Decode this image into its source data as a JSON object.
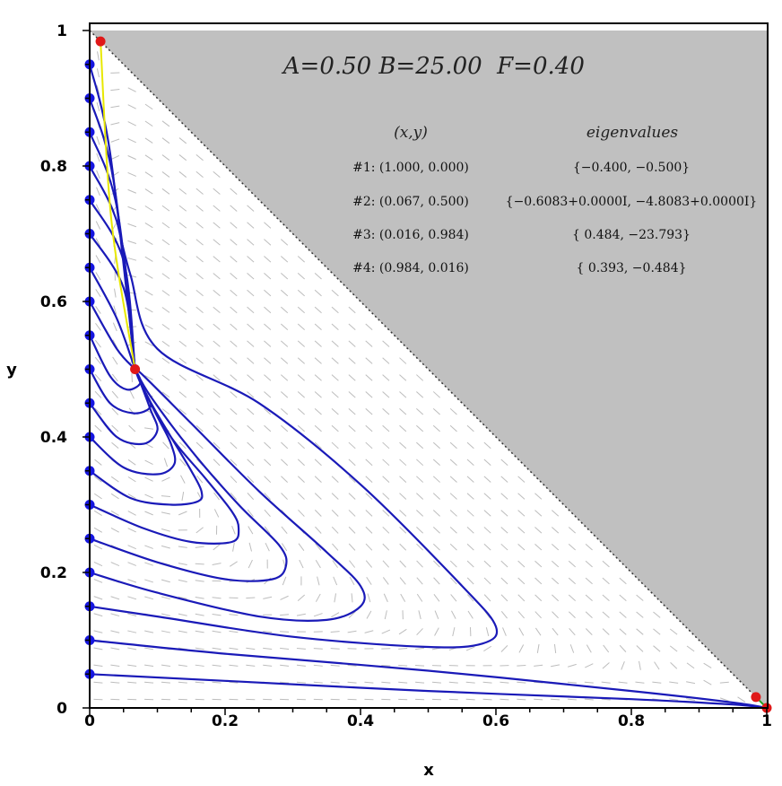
{
  "params": {
    "A": "A=0.50",
    "B": "B=25.00",
    "F": "F=0.40"
  },
  "fixed_points_table": {
    "headers": {
      "xy": "(x,y)",
      "eig": "eigenvalues"
    },
    "rows": [
      {
        "point": "#1: (1.000, 0.000)",
        "eig": "{−0.400, −0.500}"
      },
      {
        "point": "#2: (0.067, 0.500)",
        "eig": "{−0.6083+0.0000I, −4.8083+0.0000I}"
      },
      {
        "point": "#3: (0.016, 0.984)",
        "eig": "{ 0.484, −23.793}"
      },
      {
        "point": "#4: (0.984, 0.016)",
        "eig": "{ 0.393, −0.484}"
      }
    ]
  },
  "chart_data": {
    "type": "line",
    "title": "",
    "xlabel": "x",
    "ylabel": "y",
    "xlim": [
      0,
      1
    ],
    "ylim": [
      0,
      1
    ],
    "xticks": [
      0,
      0.2,
      0.4,
      0.6,
      0.8,
      1
    ],
    "xtick_labels": [
      "0",
      "0.2",
      "0.4",
      "0.6",
      "0.8",
      "1"
    ],
    "yticks": [
      0,
      0.2,
      0.4,
      0.6,
      0.8,
      1
    ],
    "ytick_labels": [
      "0",
      "0.2",
      "0.4",
      "0.6",
      "0.8",
      "1"
    ],
    "grid": false,
    "direction_field": true,
    "shaded_region": "x + y > 1",
    "colors": {
      "trajectory": "#1a1ab8",
      "start_point": "#1616e0",
      "fixed_point": "#e01818",
      "separatrix": "#e8e800",
      "shade": "#c0c0c0",
      "field": "#bdbdbd"
    },
    "start_points": [
      [
        0,
        0.05
      ],
      [
        0,
        0.1
      ],
      [
        0,
        0.15
      ],
      [
        0,
        0.2
      ],
      [
        0,
        0.25
      ],
      [
        0,
        0.3
      ],
      [
        0,
        0.35
      ],
      [
        0,
        0.4
      ],
      [
        0,
        0.45
      ],
      [
        0,
        0.5
      ],
      [
        0,
        0.55
      ],
      [
        0,
        0.6
      ],
      [
        0,
        0.65
      ],
      [
        0,
        0.7
      ],
      [
        0,
        0.75
      ],
      [
        0,
        0.8
      ],
      [
        0,
        0.85
      ],
      [
        0,
        0.9
      ],
      [
        0,
        0.95
      ]
    ],
    "fixed_points": [
      [
        1.0,
        0.0
      ],
      [
        0.067,
        0.5
      ],
      [
        0.016,
        0.984
      ],
      [
        0.984,
        0.016
      ]
    ],
    "trajectories": [
      [
        [
          0,
          0.05
        ],
        [
          0.2,
          0.04
        ],
        [
          0.5,
          0.025
        ],
        [
          0.8,
          0.013
        ],
        [
          0.95,
          0.005
        ],
        [
          1,
          0
        ]
      ],
      [
        [
          0,
          0.1
        ],
        [
          0.2,
          0.08
        ],
        [
          0.5,
          0.055
        ],
        [
          0.8,
          0.025
        ],
        [
          0.95,
          0.008
        ],
        [
          1,
          0
        ]
      ],
      [
        [
          0,
          0.15
        ],
        [
          0.1,
          0.135
        ],
        [
          0.3,
          0.105
        ],
        [
          0.5,
          0.09
        ],
        [
          0.58,
          0.095
        ],
        [
          0.6,
          0.12
        ],
        [
          0.55,
          0.18
        ],
        [
          0.4,
          0.33
        ],
        [
          0.25,
          0.45
        ],
        [
          0.1,
          0.53
        ],
        [
          0.06,
          0.64
        ],
        [
          0.04,
          0.72
        ]
      ],
      [
        [
          0,
          0.2
        ],
        [
          0.1,
          0.17
        ],
        [
          0.25,
          0.135
        ],
        [
          0.35,
          0.13
        ],
        [
          0.4,
          0.15
        ],
        [
          0.4,
          0.18
        ],
        [
          0.35,
          0.23
        ],
        [
          0.25,
          0.32
        ],
        [
          0.15,
          0.42
        ],
        [
          0.08,
          0.49
        ],
        [
          0.067,
          0.5
        ]
      ],
      [
        [
          0,
          0.25
        ],
        [
          0.1,
          0.215
        ],
        [
          0.2,
          0.19
        ],
        [
          0.27,
          0.19
        ],
        [
          0.29,
          0.21
        ],
        [
          0.28,
          0.24
        ],
        [
          0.22,
          0.3
        ],
        [
          0.15,
          0.38
        ],
        [
          0.09,
          0.46
        ],
        [
          0.067,
          0.5
        ]
      ],
      [
        [
          0,
          0.3
        ],
        [
          0.08,
          0.265
        ],
        [
          0.15,
          0.245
        ],
        [
          0.21,
          0.245
        ],
        [
          0.22,
          0.265
        ],
        [
          0.21,
          0.29
        ],
        [
          0.17,
          0.34
        ],
        [
          0.12,
          0.4
        ],
        [
          0.08,
          0.47
        ],
        [
          0.067,
          0.5
        ]
      ],
      [
        [
          0,
          0.35
        ],
        [
          0.06,
          0.31
        ],
        [
          0.12,
          0.3
        ],
        [
          0.16,
          0.305
        ],
        [
          0.165,
          0.32
        ],
        [
          0.15,
          0.35
        ],
        [
          0.12,
          0.4
        ],
        [
          0.085,
          0.46
        ],
        [
          0.067,
          0.5
        ]
      ],
      [
        [
          0,
          0.4
        ],
        [
          0.05,
          0.355
        ],
        [
          0.1,
          0.345
        ],
        [
          0.125,
          0.36
        ],
        [
          0.12,
          0.39
        ],
        [
          0.1,
          0.43
        ],
        [
          0.075,
          0.48
        ],
        [
          0.067,
          0.5
        ]
      ],
      [
        [
          0,
          0.45
        ],
        [
          0.04,
          0.4
        ],
        [
          0.08,
          0.39
        ],
        [
          0.1,
          0.41
        ],
        [
          0.09,
          0.44
        ],
        [
          0.075,
          0.48
        ],
        [
          0.067,
          0.5
        ]
      ],
      [
        [
          0,
          0.5
        ],
        [
          0.03,
          0.45
        ],
        [
          0.065,
          0.435
        ],
        [
          0.09,
          0.445
        ],
        [
          0.08,
          0.47
        ],
        [
          0.067,
          0.5
        ]
      ],
      [
        [
          0,
          0.55
        ],
        [
          0.03,
          0.49
        ],
        [
          0.055,
          0.47
        ],
        [
          0.075,
          0.48
        ],
        [
          0.067,
          0.5
        ]
      ],
      [
        [
          0,
          0.6
        ],
        [
          0.04,
          0.53
        ],
        [
          0.067,
          0.5
        ]
      ],
      [
        [
          0,
          0.65
        ],
        [
          0.04,
          0.575
        ],
        [
          0.067,
          0.5
        ]
      ],
      [
        [
          0,
          0.7
        ],
        [
          0.05,
          0.62
        ],
        [
          0.067,
          0.5
        ]
      ],
      [
        [
          0,
          0.75
        ],
        [
          0.05,
          0.66
        ],
        [
          0.067,
          0.5
        ]
      ],
      [
        [
          0,
          0.8
        ],
        [
          0.045,
          0.7
        ],
        [
          0.067,
          0.5
        ]
      ],
      [
        [
          0,
          0.85
        ],
        [
          0.04,
          0.74
        ],
        [
          0.067,
          0.5
        ]
      ],
      [
        [
          0,
          0.9
        ],
        [
          0.035,
          0.78
        ],
        [
          0.067,
          0.5
        ]
      ],
      [
        [
          0,
          0.95
        ],
        [
          0.03,
          0.82
        ],
        [
          0.067,
          0.5
        ]
      ]
    ],
    "separatrix": [
      [
        0.016,
        0.984
      ],
      [
        0.032,
        0.72
      ],
      [
        0.067,
        0.5
      ]
    ]
  }
}
